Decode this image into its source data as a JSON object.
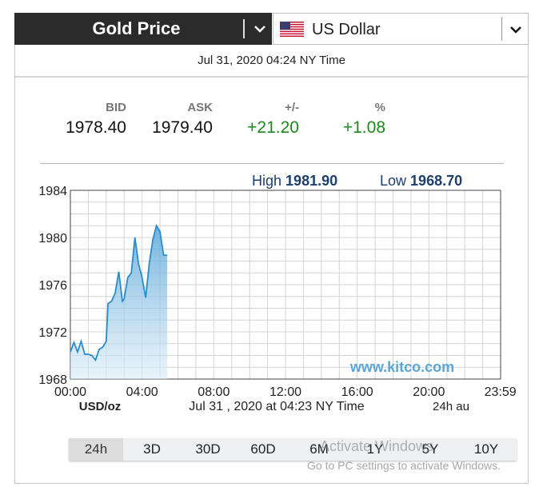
{
  "header": {
    "metal_label": "Gold Price",
    "currency_label": "US Dollar"
  },
  "timestamp": "Jul 31, 2020 04:24 NY Time",
  "quote": {
    "bid_label": "BID",
    "bid": "1978.40",
    "ask_label": "ASK",
    "ask": "1979.40",
    "change_label": "+/-",
    "change": "+21.20",
    "pct_label": "%",
    "pct": "+1.08"
  },
  "stats": {
    "high_label": "High",
    "high": "1981.90",
    "low_label": "Low",
    "low": "1968.70"
  },
  "chart_data": {
    "type": "area",
    "y_ticks": [
      "1984",
      "1980",
      "1976",
      "1972",
      "1968"
    ],
    "ylim": [
      1968,
      1984
    ],
    "x_ticks": [
      "00:00",
      "04:00",
      "08:00",
      "12:00",
      "16:00",
      "20:00",
      "23:59"
    ],
    "xlim": [
      0,
      24
    ],
    "unit_label": "USD/oz",
    "time_label": "Jul 31 , 2020 at 04:23 NY Time",
    "range_label": "24h au",
    "watermark": "www.kitco.com",
    "series": [
      {
        "x": [
          0.0,
          0.2,
          0.4,
          0.6,
          0.8,
          1.0,
          1.2,
          1.4,
          1.6,
          1.8,
          2.0,
          2.1,
          2.3,
          2.5,
          2.7,
          2.9,
          3.0,
          3.2,
          3.4,
          3.6,
          3.8,
          4.0,
          4.2,
          4.4,
          4.6,
          4.8,
          5.0,
          5.2,
          5.4
        ],
        "y": [
          1970.3,
          1971.1,
          1970.3,
          1971.2,
          1970.1,
          1970.1,
          1970.0,
          1969.6,
          1970.5,
          1970.7,
          1971.2,
          1974.4,
          1974.6,
          1975.3,
          1977.1,
          1974.6,
          1974.8,
          1976.6,
          1977.0,
          1980.0,
          1977.8,
          1976.6,
          1974.9,
          1977.8,
          1979.8,
          1981.0,
          1980.5,
          1978.5,
          1978.5
        ]
      }
    ]
  },
  "tabs": [
    "24h",
    "3D",
    "30D",
    "60D",
    "6M",
    "1Y",
    "5Y",
    "10Y"
  ],
  "active_tab": "24h",
  "windows_watermark": {
    "line1": "Activate Windows",
    "line2": "Go to PC settings to activate Windows."
  }
}
